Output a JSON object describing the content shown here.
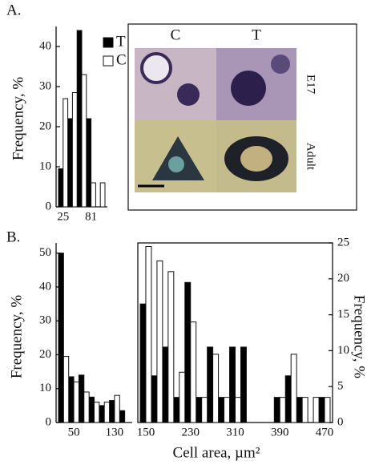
{
  "chart_data": [
    {
      "type": "bar",
      "label": "A.",
      "ylabel": "Frequency, %",
      "categories": [
        "25",
        null,
        null,
        "81",
        null
      ],
      "series": [
        {
          "name": "T",
          "color": "#000000",
          "values": [
            9.5,
            22,
            44,
            22,
            0
          ]
        },
        {
          "name": "C",
          "color": "#ffffff",
          "values": [
            27,
            28.5,
            33,
            6,
            6
          ]
        }
      ],
      "ylim": [
        0,
        45
      ],
      "yticks": [
        0,
        10,
        20,
        30,
        40
      ],
      "inset": {
        "columns": [
          "C",
          "T"
        ],
        "rows": [
          "E17",
          "Adult"
        ]
      }
    },
    {
      "type": "bar",
      "label": "B.",
      "ylabel": "Frequency, %",
      "categories": [
        null,
        "50",
        null,
        null,
        null,
        "130",
        null
      ],
      "series": [
        {
          "color": "#000000",
          "values": [
            50,
            13.5,
            14,
            7.5,
            5,
            6.5,
            3.5
          ]
        },
        {
          "color": "#ffffff",
          "values": [
            19.5,
            12,
            9,
            6,
            6,
            8,
            0
          ]
        }
      ],
      "ylim": [
        0,
        53
      ],
      "yticks": [
        0,
        10,
        20,
        30,
        40,
        50
      ]
    },
    {
      "type": "bar",
      "xlabel": "Cell area, µm²",
      "y2label": "Frequency, %",
      "categories": [
        "150",
        null,
        null,
        null,
        "230",
        null,
        null,
        null,
        "310",
        null,
        null,
        null,
        "390",
        null,
        null,
        null,
        "470"
      ],
      "series": [
        {
          "color": "#000000",
          "axis": "y2",
          "values": [
            16.5,
            6.5,
            10.5,
            3.5,
            19.5,
            3.5,
            10.5,
            3.5,
            10.5,
            10.5,
            0,
            0,
            3.5,
            6.5,
            3.5,
            0,
            3.5
          ]
        },
        {
          "color": "#ffffff",
          "axis": "y2",
          "values": [
            24.5,
            22.5,
            21,
            7,
            14,
            3.5,
            9.5,
            3.5,
            3.5,
            0,
            0,
            0,
            3.5,
            9.5,
            3.5,
            3.5,
            3.5
          ]
        }
      ],
      "y2lim": [
        0,
        25
      ],
      "y2ticks": [
        0,
        5,
        10,
        15,
        20,
        25
      ]
    }
  ]
}
